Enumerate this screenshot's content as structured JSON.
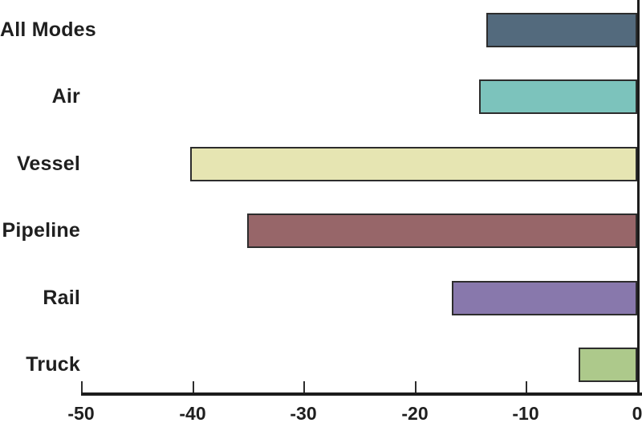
{
  "chart_data": {
    "type": "bar",
    "orientation": "horizontal",
    "title": "",
    "xlabel": "",
    "ylabel": "",
    "grid": false,
    "legend": "none",
    "xlim": [
      -50,
      0
    ],
    "x_ticks": [
      -50,
      -40,
      -30,
      -20,
      -10,
      0
    ],
    "x_tick_labels": [
      "-50",
      "-40",
      "-30",
      "-20",
      "-10",
      "0"
    ],
    "categories": [
      "All Modes",
      "Air",
      "Vessel",
      "Pipeline",
      "Rail",
      "Truck"
    ],
    "values": [
      -13.6,
      -14.2,
      -40.2,
      -35.1,
      -16.7,
      -5.3
    ],
    "bar_colors": [
      "#536a7d",
      "#7cc3bc",
      "#e6e5b2",
      "#976669",
      "#8878ac",
      "#adc98b"
    ],
    "bar_border_color": "#2d2d2d",
    "axis_color": "#1c1c1c",
    "text_color": "#1f1f1f"
  }
}
